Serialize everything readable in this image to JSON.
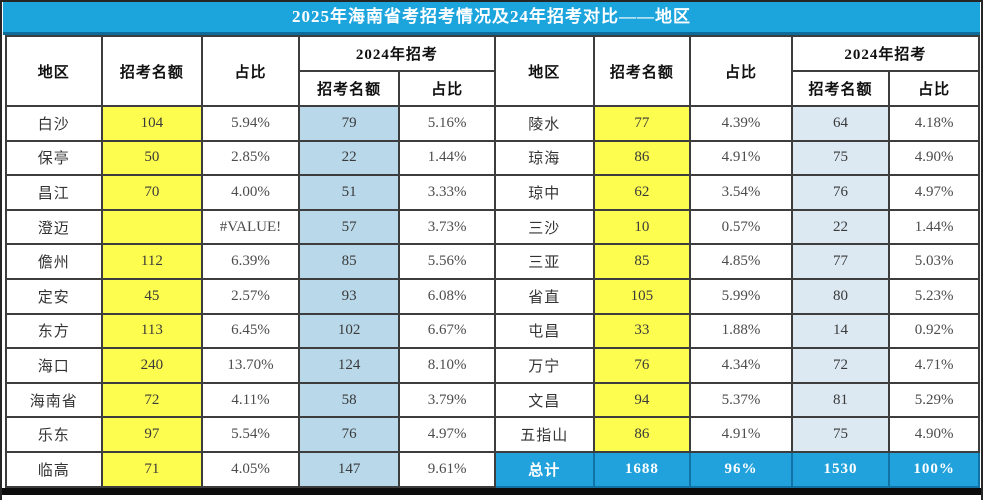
{
  "title": "2025年海南省考招考情况及24年招考对比——地区",
  "colors": {
    "title_bg": "#1ca4dd",
    "total_row_bg": "#22a2dc",
    "quota_column_bg": "#fdfd4f",
    "left_2024_column_bg": "#b9d8ea",
    "right_2024_column_bg": "#dce9f3",
    "grid_line": "#3d3d3d",
    "title_text": "#ffffff"
  },
  "table": {
    "headers": {
      "region": "地区",
      "quota": "招考名额",
      "share": "占比",
      "group_2024": "2024年招考"
    },
    "left_rows": [
      {
        "region": "白沙",
        "quota": "104",
        "share": "5.94%",
        "quota24": "79",
        "share24": "5.16%"
      },
      {
        "region": "保亭",
        "quota": "50",
        "share": "2.85%",
        "quota24": "22",
        "share24": "1.44%"
      },
      {
        "region": "昌江",
        "quota": "70",
        "share": "4.00%",
        "quota24": "51",
        "share24": "3.33%"
      },
      {
        "region": "澄迈",
        "quota": "",
        "share": "#VALUE!",
        "quota24": "57",
        "share24": "3.73%"
      },
      {
        "region": "儋州",
        "quota": "112",
        "share": "6.39%",
        "quota24": "85",
        "share24": "5.56%"
      },
      {
        "region": "定安",
        "quota": "45",
        "share": "2.57%",
        "quota24": "93",
        "share24": "6.08%"
      },
      {
        "region": "东方",
        "quota": "113",
        "share": "6.45%",
        "quota24": "102",
        "share24": "6.67%"
      },
      {
        "region": "海口",
        "quota": "240",
        "share": "13.70%",
        "quota24": "124",
        "share24": "8.10%"
      },
      {
        "region": "海南省",
        "quota": "72",
        "share": "4.11%",
        "quota24": "58",
        "share24": "3.79%"
      },
      {
        "region": "乐东",
        "quota": "97",
        "share": "5.54%",
        "quota24": "76",
        "share24": "4.97%"
      },
      {
        "region": "临高",
        "quota": "71",
        "share": "4.05%",
        "quota24": "147",
        "share24": "9.61%"
      }
    ],
    "right_rows": [
      {
        "region": "陵水",
        "quota": "77",
        "share": "4.39%",
        "quota24": "64",
        "share24": "4.18%"
      },
      {
        "region": "琼海",
        "quota": "86",
        "share": "4.91%",
        "quota24": "75",
        "share24": "4.90%"
      },
      {
        "region": "琼中",
        "quota": "62",
        "share": "3.54%",
        "quota24": "76",
        "share24": "4.97%"
      },
      {
        "region": "三沙",
        "quota": "10",
        "share": "0.57%",
        "quota24": "22",
        "share24": "1.44%"
      },
      {
        "region": "三亚",
        "quota": "85",
        "share": "4.85%",
        "quota24": "77",
        "share24": "5.03%"
      },
      {
        "region": "省直",
        "quota": "105",
        "share": "5.99%",
        "quota24": "80",
        "share24": "5.23%"
      },
      {
        "region": "屯昌",
        "quota": "33",
        "share": "1.88%",
        "quota24": "14",
        "share24": "0.92%"
      },
      {
        "region": "万宁",
        "quota": "76",
        "share": "4.34%",
        "quota24": "72",
        "share24": "4.71%"
      },
      {
        "region": "文昌",
        "quota": "94",
        "share": "5.37%",
        "quota24": "81",
        "share24": "5.29%"
      },
      {
        "region": "五指山",
        "quota": "86",
        "share": "4.91%",
        "quota24": "75",
        "share24": "4.90%"
      }
    ],
    "total_row": {
      "region": "总计",
      "quota": "1688",
      "share": "96%",
      "quota24": "1530",
      "share24": "100%"
    }
  }
}
